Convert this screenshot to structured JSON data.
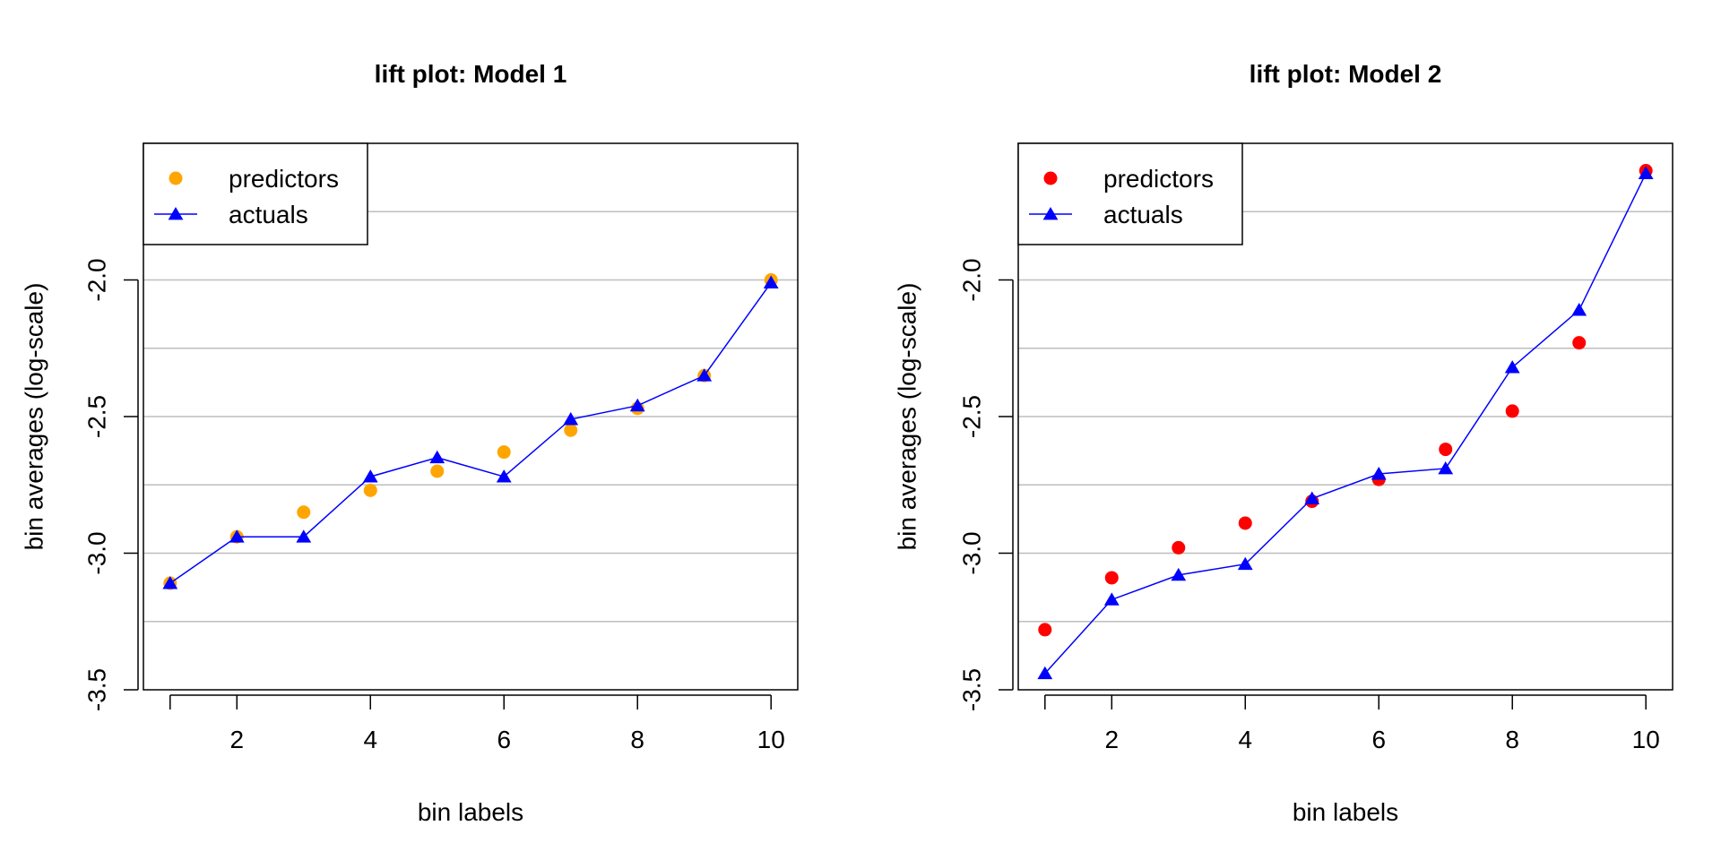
{
  "chart_data": [
    {
      "type": "scatter",
      "title": "lift plot: Model 1",
      "xlabel": "bin labels",
      "ylabel": "bin averages (log-scale)",
      "x": [
        1,
        2,
        3,
        4,
        5,
        6,
        7,
        8,
        9,
        10
      ],
      "xticks": [
        2,
        4,
        6,
        8,
        10
      ],
      "xlim": [
        0.6,
        10.4
      ],
      "yticks": [
        -3.5,
        -3.0,
        -2.5,
        -2.0
      ],
      "ylim": [
        -3.5,
        -1.5
      ],
      "grid": "horizontal",
      "gridlines": [
        -3.25,
        -3.0,
        -2.75,
        -2.5,
        -2.25,
        -2.0,
        -1.75
      ],
      "legend_position": "top-left",
      "series": [
        {
          "name": "predictors",
          "style": "points",
          "color": "#FFA500",
          "values": [
            -3.11,
            -2.94,
            -2.85,
            -2.77,
            -2.7,
            -2.63,
            -2.55,
            -2.47,
            -2.35,
            -2.0
          ]
        },
        {
          "name": "actuals",
          "style": "line-triangles",
          "color": "#0000FF",
          "values": [
            -3.11,
            -2.94,
            -2.94,
            -2.72,
            -2.65,
            -2.72,
            -2.51,
            -2.46,
            -2.35,
            -2.01
          ]
        }
      ]
    },
    {
      "type": "scatter",
      "title": "lift plot: Model 2",
      "xlabel": "bin labels",
      "ylabel": "bin averages (log-scale)",
      "x": [
        1,
        2,
        3,
        4,
        5,
        6,
        7,
        8,
        9,
        10
      ],
      "xticks": [
        2,
        4,
        6,
        8,
        10
      ],
      "xlim": [
        0.6,
        10.4
      ],
      "yticks": [
        -3.5,
        -3.0,
        -2.5,
        -2.0
      ],
      "ylim": [
        -3.5,
        -1.5
      ],
      "grid": "horizontal",
      "gridlines": [
        -3.25,
        -3.0,
        -2.75,
        -2.5,
        -2.25,
        -2.0,
        -1.75
      ],
      "legend_position": "top-left",
      "series": [
        {
          "name": "predictors",
          "style": "points",
          "color": "#FF0000",
          "values": [
            -3.28,
            -3.09,
            -2.98,
            -2.89,
            -2.81,
            -2.73,
            -2.62,
            -2.48,
            -2.23,
            -1.6
          ]
        },
        {
          "name": "actuals",
          "style": "line-triangles",
          "color": "#0000FF",
          "values": [
            -3.44,
            -3.17,
            -3.08,
            -3.04,
            -2.8,
            -2.71,
            -2.69,
            -2.32,
            -2.11,
            -1.61
          ]
        }
      ]
    }
  ]
}
